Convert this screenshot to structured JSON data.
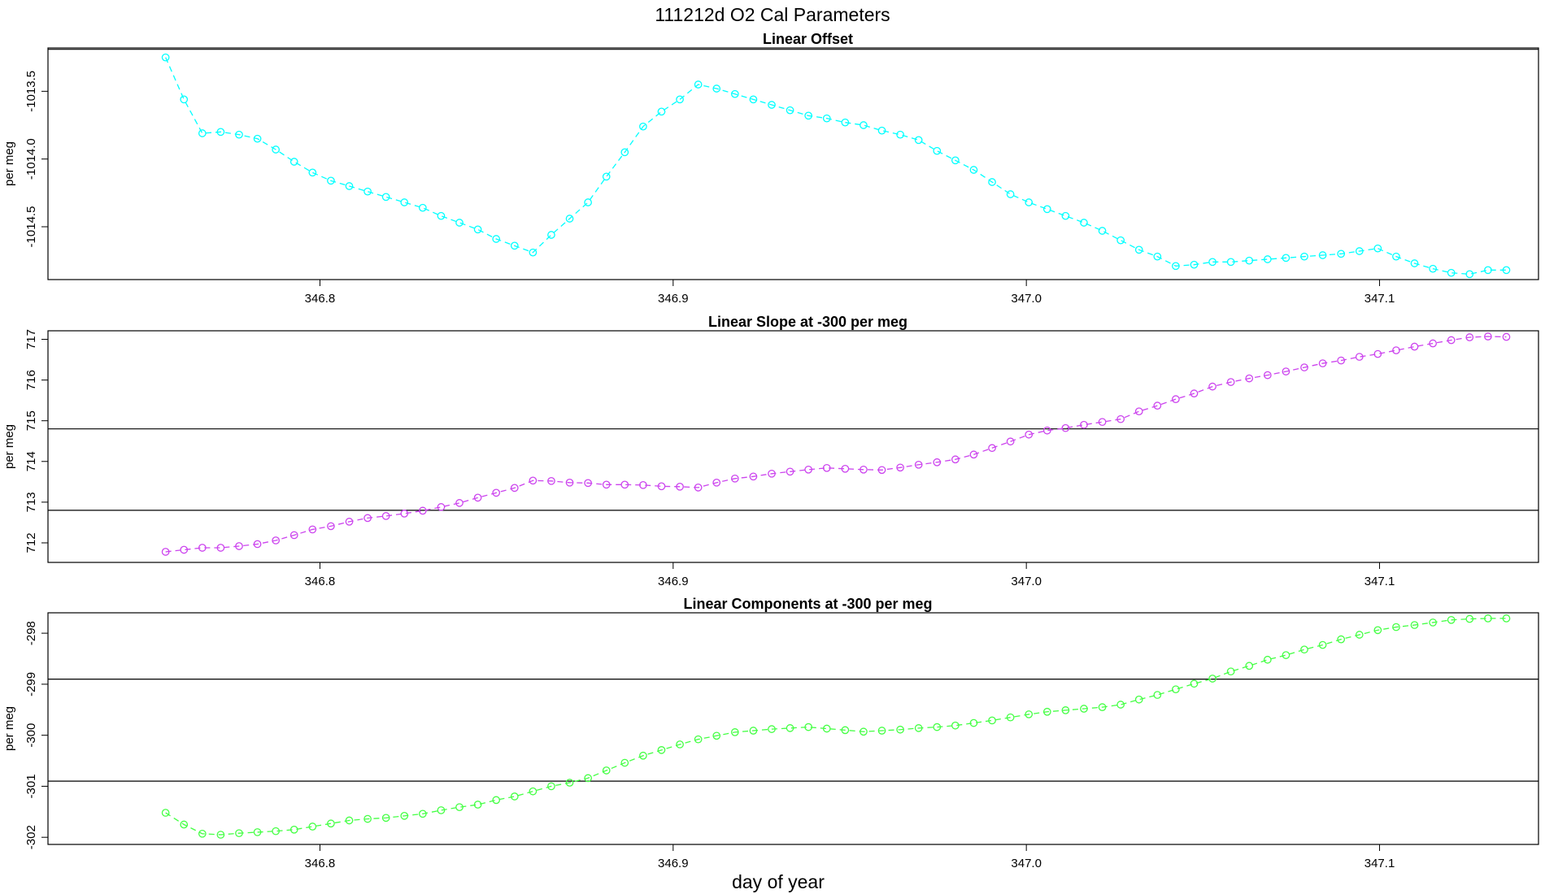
{
  "figure": {
    "title": "111212d   O2 Cal Parameters",
    "xlabel": "day of year"
  },
  "chart_data": [
    {
      "type": "line",
      "title": "Linear Offset",
      "ylabel": "per meg",
      "color": "#00ffff",
      "xlim": [
        346.723,
        347.145
      ],
      "ylim": [
        -1014.89,
        -1013.18
      ],
      "xticks": [
        "346.8",
        "346.9",
        "347.0",
        "347.1"
      ],
      "yticks": [
        "-1013.5",
        "-1014.0",
        "-1014.5"
      ],
      "hlines": [
        -1013.19
      ],
      "x": [
        346.7563,
        346.7615,
        346.7667,
        346.7719,
        346.7771,
        346.7823,
        346.7875,
        346.7927,
        346.7979,
        346.8031,
        346.8083,
        346.8135,
        346.8187,
        346.8239,
        346.8291,
        346.8343,
        346.8395,
        346.8447,
        346.8499,
        346.8551,
        346.8603,
        346.8655,
        346.8707,
        346.8759,
        346.8811,
        346.8863,
        346.8915,
        346.8967,
        346.9019,
        346.9071,
        346.9123,
        346.9175,
        346.9227,
        346.9279,
        346.9331,
        346.9383,
        346.9435,
        346.9487,
        346.9539,
        346.9591,
        346.9643,
        346.9695,
        346.9747,
        346.9799,
        346.9851,
        346.9903,
        346.9955,
        347.0007,
        347.0059,
        347.0111,
        347.0163,
        347.0215,
        347.0267,
        347.0319,
        347.0371,
        347.0423,
        347.0475,
        347.0527,
        347.0579,
        347.0631,
        347.0683,
        347.0735,
        347.0787,
        347.0839,
        347.0891,
        347.0943,
        347.0995,
        347.1047,
        347.1099,
        347.1151,
        347.1203,
        347.1255,
        347.1307,
        347.1359
      ],
      "y": [
        -1013.25,
        -1013.56,
        -1013.81,
        -1013.8,
        -1013.82,
        -1013.85,
        -1013.93,
        -1014.02,
        -1014.1,
        -1014.16,
        -1014.2,
        -1014.24,
        -1014.28,
        -1014.32,
        -1014.36,
        -1014.42,
        -1014.47,
        -1014.52,
        -1014.59,
        -1014.64,
        -1014.69,
        -1014.56,
        -1014.44,
        -1014.32,
        -1014.13,
        -1013.95,
        -1013.76,
        -1013.65,
        -1013.56,
        -1013.45,
        -1013.48,
        -1013.52,
        -1013.56,
        -1013.6,
        -1013.64,
        -1013.68,
        -1013.7,
        -1013.73,
        -1013.75,
        -1013.79,
        -1013.82,
        -1013.86,
        -1013.94,
        -1014.01,
        -1014.08,
        -1014.17,
        -1014.26,
        -1014.32,
        -1014.37,
        -1014.42,
        -1014.47,
        -1014.53,
        -1014.6,
        -1014.67,
        -1014.72,
        -1014.79,
        -1014.78,
        -1014.76,
        -1014.76,
        -1014.75,
        -1014.74,
        -1014.73,
        -1014.72,
        -1014.71,
        -1014.7,
        -1014.68,
        -1014.66,
        -1014.72,
        -1014.77,
        -1014.81,
        -1014.84,
        -1014.85,
        -1014.82,
        -1014.82
      ]
    },
    {
      "type": "line",
      "title": "Linear Slope at -300 per meg",
      "ylabel": "per meg",
      "color": "#cc44ee",
      "xlim": [
        346.723,
        347.145
      ],
      "ylim": [
        711.52,
        717.21
      ],
      "xticks": [
        "346.8",
        "346.9",
        "347.0",
        "347.1"
      ],
      "yticks": [
        "712",
        "713",
        "714",
        "715",
        "716",
        "717"
      ],
      "hlines": [
        712.8,
        714.8
      ],
      "x": [
        346.7563,
        346.7615,
        346.7667,
        346.7719,
        346.7771,
        346.7823,
        346.7875,
        346.7927,
        346.7979,
        346.8031,
        346.8083,
        346.8135,
        346.8187,
        346.8239,
        346.8291,
        346.8343,
        346.8395,
        346.8447,
        346.8499,
        346.8551,
        346.8603,
        346.8655,
        346.8707,
        346.8759,
        346.8811,
        346.8863,
        346.8915,
        346.8967,
        346.9019,
        346.9071,
        346.9123,
        346.9175,
        346.9227,
        346.9279,
        346.9331,
        346.9383,
        346.9435,
        346.9487,
        346.9539,
        346.9591,
        346.9643,
        346.9695,
        346.9747,
        346.9799,
        346.9851,
        346.9903,
        346.9955,
        347.0007,
        347.0059,
        347.0111,
        347.0163,
        347.0215,
        347.0267,
        347.0319,
        347.0371,
        347.0423,
        347.0475,
        347.0527,
        347.0579,
        347.0631,
        347.0683,
        347.0735,
        347.0787,
        347.0839,
        347.0891,
        347.0943,
        347.0995,
        347.1047,
        347.1099,
        347.1151,
        347.1203,
        347.1255,
        347.1307,
        347.1359
      ],
      "y": [
        711.78,
        711.83,
        711.88,
        711.88,
        711.92,
        711.97,
        712.06,
        712.19,
        712.33,
        712.41,
        712.52,
        712.61,
        712.66,
        712.72,
        712.79,
        712.88,
        712.98,
        713.11,
        713.23,
        713.35,
        713.53,
        713.52,
        713.48,
        713.47,
        713.43,
        713.43,
        713.42,
        713.39,
        713.38,
        713.36,
        713.48,
        713.58,
        713.63,
        713.7,
        713.75,
        713.8,
        713.84,
        713.82,
        713.8,
        713.79,
        713.85,
        713.92,
        713.98,
        714.05,
        714.17,
        714.33,
        714.49,
        714.66,
        714.76,
        714.82,
        714.9,
        714.97,
        715.04,
        715.23,
        715.37,
        715.53,
        715.67,
        715.84,
        715.95,
        716.04,
        716.12,
        716.21,
        716.31,
        716.41,
        716.48,
        716.57,
        716.64,
        716.73,
        716.82,
        716.9,
        716.98,
        717.05,
        717.07,
        717.06
      ]
    },
    {
      "type": "line",
      "title": "Linear Components at -300 per meg",
      "ylabel": "per meg",
      "color": "#44ff44",
      "xlim": [
        346.723,
        347.145
      ],
      "ylim": [
        -302.14,
        -297.6
      ],
      "xticks": [
        "346.8",
        "346.9",
        "347.0",
        "347.1"
      ],
      "yticks": [
        "-298",
        "-299",
        "-300",
        "-301",
        "-302"
      ],
      "hlines": [
        -298.9,
        -300.9
      ],
      "x": [
        346.7563,
        346.7615,
        346.7667,
        346.7719,
        346.7771,
        346.7823,
        346.7875,
        346.7927,
        346.7979,
        346.8031,
        346.8083,
        346.8135,
        346.8187,
        346.8239,
        346.8291,
        346.8343,
        346.8395,
        346.8447,
        346.8499,
        346.8551,
        346.8603,
        346.8655,
        346.8707,
        346.8759,
        346.8811,
        346.8863,
        346.8915,
        346.8967,
        346.9019,
        346.9071,
        346.9123,
        346.9175,
        346.9227,
        346.9279,
        346.9331,
        346.9383,
        346.9435,
        346.9487,
        346.9539,
        346.9591,
        346.9643,
        346.9695,
        346.9747,
        346.9799,
        346.9851,
        346.9903,
        346.9955,
        347.0007,
        347.0059,
        347.0111,
        347.0163,
        347.0215,
        347.0267,
        347.0319,
        347.0371,
        347.0423,
        347.0475,
        347.0527,
        347.0579,
        347.0631,
        347.0683,
        347.0735,
        347.0787,
        347.0839,
        347.0891,
        347.0943,
        347.0995,
        347.1047,
        347.1099,
        347.1151,
        347.1203,
        347.1255,
        347.1307,
        347.1359
      ],
      "y": [
        -301.52,
        -301.75,
        -301.93,
        -301.95,
        -301.92,
        -301.9,
        -301.88,
        -301.85,
        -301.79,
        -301.73,
        -301.67,
        -301.64,
        -301.62,
        -301.58,
        -301.54,
        -301.47,
        -301.41,
        -301.36,
        -301.27,
        -301.2,
        -301.1,
        -301.0,
        -300.93,
        -300.84,
        -300.69,
        -300.54,
        -300.4,
        -300.29,
        -300.18,
        -300.08,
        -300.01,
        -299.94,
        -299.91,
        -299.88,
        -299.86,
        -299.84,
        -299.87,
        -299.9,
        -299.93,
        -299.91,
        -299.89,
        -299.86,
        -299.84,
        -299.81,
        -299.76,
        -299.71,
        -299.65,
        -299.59,
        -299.54,
        -299.51,
        -299.48,
        -299.45,
        -299.4,
        -299.3,
        -299.21,
        -299.1,
        -298.99,
        -298.89,
        -298.75,
        -298.64,
        -298.52,
        -298.43,
        -298.32,
        -298.23,
        -298.12,
        -298.03,
        -297.94,
        -297.88,
        -297.84,
        -297.79,
        -297.74,
        -297.72,
        -297.71,
        -297.71
      ]
    }
  ]
}
